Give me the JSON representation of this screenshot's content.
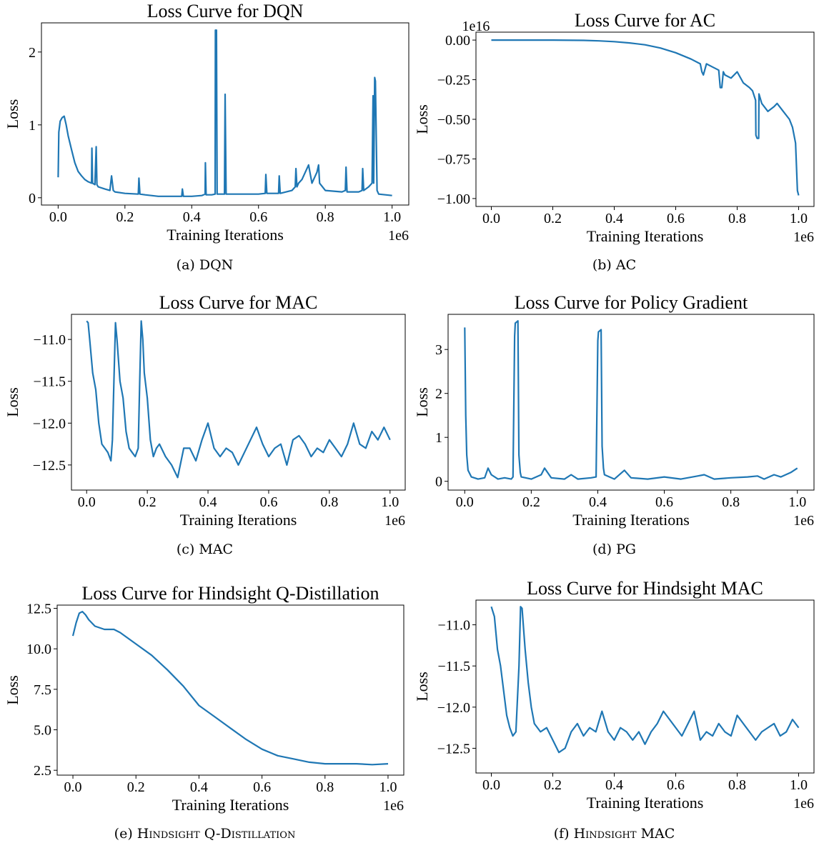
{
  "chart_data": [
    {
      "type": "line",
      "title": "Loss Curve for DQN",
      "xlabel": "Training Iterations",
      "ylabel": "Loss",
      "x_offset_label": "1e6",
      "y_offset_label": "",
      "caption": "(a) DQN",
      "xlim": [
        -0.05,
        1.05
      ],
      "ylim": [
        -0.1,
        2.4
      ],
      "xticks": [
        0.0,
        0.2,
        0.4,
        0.6,
        0.8,
        1.0
      ],
      "xtick_labels": [
        "0.0",
        "0.2",
        "0.4",
        "0.6",
        "0.8",
        "1.0"
      ],
      "yticks": [
        0,
        1,
        2
      ],
      "ytick_labels": [
        "0",
        "1",
        "2"
      ],
      "color": "#1f77b4",
      "series": [
        {
          "x": [
            0.0,
            0.002,
            0.006,
            0.012,
            0.018,
            0.024,
            0.03,
            0.04,
            0.05,
            0.06,
            0.07,
            0.08,
            0.09,
            0.1,
            0.101,
            0.103,
            0.11,
            0.114,
            0.116,
            0.12,
            0.14,
            0.155,
            0.16,
            0.165,
            0.17,
            0.2,
            0.24,
            0.242,
            0.245,
            0.26,
            0.3,
            0.35,
            0.37,
            0.372,
            0.375,
            0.4,
            0.43,
            0.44,
            0.441,
            0.443,
            0.46,
            0.47,
            0.471,
            0.474,
            0.476,
            0.49,
            0.498,
            0.5,
            0.503,
            0.55,
            0.6,
            0.62,
            0.622,
            0.625,
            0.66,
            0.662,
            0.665,
            0.7,
            0.71,
            0.712,
            0.715,
            0.72,
            0.73,
            0.75,
            0.76,
            0.775,
            0.78,
            0.783,
            0.8,
            0.85,
            0.86,
            0.862,
            0.865,
            0.9,
            0.91,
            0.912,
            0.915,
            0.93,
            0.94,
            0.943,
            0.945,
            0.948,
            0.95,
            0.955,
            0.96,
            0.98,
            1.0
          ],
          "y": [
            0.28,
            0.9,
            1.05,
            1.1,
            1.12,
            1.0,
            0.85,
            0.66,
            0.48,
            0.36,
            0.3,
            0.25,
            0.22,
            0.2,
            0.68,
            0.2,
            0.18,
            0.7,
            0.18,
            0.15,
            0.12,
            0.1,
            0.3,
            0.1,
            0.08,
            0.06,
            0.05,
            0.27,
            0.05,
            0.04,
            0.02,
            0.02,
            0.02,
            0.12,
            0.02,
            0.02,
            0.03,
            0.05,
            0.48,
            0.04,
            0.04,
            0.05,
            2.3,
            2.3,
            0.05,
            0.05,
            0.05,
            1.42,
            0.05,
            0.05,
            0.05,
            0.06,
            0.32,
            0.06,
            0.06,
            0.3,
            0.06,
            0.1,
            0.15,
            0.4,
            0.15,
            0.2,
            0.25,
            0.45,
            0.2,
            0.35,
            0.45,
            0.2,
            0.1,
            0.08,
            0.1,
            0.42,
            0.08,
            0.08,
            0.1,
            0.4,
            0.1,
            0.15,
            0.2,
            1.4,
            0.2,
            1.65,
            1.6,
            0.1,
            0.05,
            0.04,
            0.03
          ]
        }
      ]
    },
    {
      "type": "line",
      "title": "Loss Curve for AC",
      "xlabel": "Training Iterations",
      "ylabel": "Loss",
      "x_offset_label": "1e6",
      "y_offset_label": "1e16",
      "caption": "(b) AC",
      "xlim": [
        -0.05,
        1.05
      ],
      "ylim": [
        -1.05,
        0.05
      ],
      "xticks": [
        0.0,
        0.2,
        0.4,
        0.6,
        0.8,
        1.0
      ],
      "xtick_labels": [
        "0.0",
        "0.2",
        "0.4",
        "0.6",
        "0.8",
        "1.0"
      ],
      "yticks": [
        0.0,
        -0.25,
        -0.5,
        -0.75,
        -1.0
      ],
      "ytick_labels": [
        "0.00",
        "−0.25",
        "−0.50",
        "−0.75",
        "−1.00"
      ],
      "color": "#1f77b4",
      "series": [
        {
          "x": [
            0.0,
            0.1,
            0.2,
            0.3,
            0.35,
            0.4,
            0.45,
            0.5,
            0.55,
            0.6,
            0.65,
            0.68,
            0.685,
            0.69,
            0.7,
            0.72,
            0.74,
            0.745,
            0.75,
            0.755,
            0.76,
            0.78,
            0.8,
            0.82,
            0.84,
            0.85,
            0.86,
            0.861,
            0.865,
            0.87,
            0.871,
            0.88,
            0.9,
            0.92,
            0.93,
            0.95,
            0.97,
            0.98,
            0.99,
            0.993,
            0.996,
            1.0
          ],
          "y": [
            0.0,
            0.0,
            0.0,
            -0.002,
            -0.005,
            -0.01,
            -0.018,
            -0.03,
            -0.05,
            -0.08,
            -0.12,
            -0.15,
            -0.2,
            -0.22,
            -0.15,
            -0.17,
            -0.19,
            -0.3,
            -0.3,
            -0.2,
            -0.22,
            -0.24,
            -0.2,
            -0.27,
            -0.3,
            -0.32,
            -0.38,
            -0.6,
            -0.62,
            -0.62,
            -0.34,
            -0.4,
            -0.45,
            -0.42,
            -0.4,
            -0.45,
            -0.5,
            -0.55,
            -0.65,
            -0.8,
            -0.95,
            -0.98
          ]
        }
      ]
    },
    {
      "type": "line",
      "title": "Loss Curve for MAC",
      "xlabel": "Training Iterations",
      "ylabel": "Loss",
      "x_offset_label": "1e6",
      "y_offset_label": "",
      "caption": "(c) MAC",
      "xlim": [
        -0.05,
        1.05
      ],
      "ylim": [
        -12.8,
        -10.7
      ],
      "xticks": [
        0.0,
        0.2,
        0.4,
        0.6,
        0.8,
        1.0
      ],
      "xtick_labels": [
        "0.0",
        "0.2",
        "0.4",
        "0.6",
        "0.8",
        "1.0"
      ],
      "yticks": [
        -11.0,
        -11.5,
        -12.0,
        -12.5
      ],
      "ytick_labels": [
        "−11.0",
        "−11.5",
        "−12.0",
        "−12.5"
      ],
      "color": "#1f77b4",
      "series": [
        {
          "x": [
            0.0,
            0.005,
            0.01,
            0.02,
            0.03,
            0.04,
            0.05,
            0.06,
            0.07,
            0.08,
            0.085,
            0.09,
            0.095,
            0.1,
            0.11,
            0.12,
            0.13,
            0.14,
            0.15,
            0.16,
            0.17,
            0.175,
            0.18,
            0.185,
            0.19,
            0.2,
            0.21,
            0.22,
            0.23,
            0.24,
            0.26,
            0.28,
            0.3,
            0.32,
            0.34,
            0.36,
            0.38,
            0.4,
            0.42,
            0.44,
            0.46,
            0.48,
            0.5,
            0.52,
            0.54,
            0.56,
            0.58,
            0.6,
            0.62,
            0.64,
            0.66,
            0.68,
            0.7,
            0.72,
            0.74,
            0.76,
            0.78,
            0.8,
            0.82,
            0.84,
            0.86,
            0.88,
            0.9,
            0.92,
            0.94,
            0.96,
            0.98,
            1.0
          ],
          "y": [
            -10.78,
            -10.8,
            -11.0,
            -11.4,
            -11.6,
            -12.0,
            -12.25,
            -12.3,
            -12.35,
            -12.45,
            -12.2,
            -11.5,
            -10.8,
            -11.0,
            -11.5,
            -11.7,
            -12.1,
            -12.3,
            -12.35,
            -12.4,
            -12.3,
            -11.5,
            -10.78,
            -11.0,
            -11.4,
            -11.7,
            -12.2,
            -12.4,
            -12.3,
            -12.25,
            -12.4,
            -12.5,
            -12.65,
            -12.3,
            -12.3,
            -12.45,
            -12.2,
            -12.0,
            -12.3,
            -12.4,
            -12.3,
            -12.35,
            -12.5,
            -12.35,
            -12.2,
            -12.05,
            -12.25,
            -12.4,
            -12.3,
            -12.25,
            -12.5,
            -12.2,
            -12.15,
            -12.25,
            -12.4,
            -12.3,
            -12.35,
            -12.2,
            -12.3,
            -12.4,
            -12.25,
            -12.0,
            -12.25,
            -12.3,
            -12.1,
            -12.2,
            -12.05,
            -12.2
          ]
        }
      ]
    },
    {
      "type": "line",
      "title": "Loss Curve for Policy Gradient",
      "xlabel": "Training Iterations",
      "ylabel": "Loss",
      "x_offset_label": "1e6",
      "y_offset_label": "",
      "caption": "(d) PG",
      "xlim": [
        -0.05,
        1.05
      ],
      "ylim": [
        -0.2,
        3.8
      ],
      "xticks": [
        0.0,
        0.2,
        0.4,
        0.6,
        0.8,
        1.0
      ],
      "xtick_labels": [
        "0.0",
        "0.2",
        "0.4",
        "0.6",
        "0.8",
        "1.0"
      ],
      "yticks": [
        0,
        1,
        2,
        3
      ],
      "ytick_labels": [
        "0",
        "1",
        "2",
        "3"
      ],
      "color": "#1f77b4",
      "series": [
        {
          "x": [
            0.0,
            0.003,
            0.006,
            0.01,
            0.02,
            0.04,
            0.06,
            0.07,
            0.08,
            0.1,
            0.12,
            0.14,
            0.145,
            0.15,
            0.152,
            0.16,
            0.163,
            0.167,
            0.17,
            0.2,
            0.23,
            0.24,
            0.26,
            0.3,
            0.32,
            0.34,
            0.38,
            0.395,
            0.4,
            0.402,
            0.41,
            0.413,
            0.417,
            0.42,
            0.45,
            0.48,
            0.5,
            0.55,
            0.6,
            0.65,
            0.7,
            0.72,
            0.75,
            0.8,
            0.85,
            0.88,
            0.9,
            0.93,
            0.95,
            0.98,
            1.0
          ],
          "y": [
            3.5,
            1.5,
            0.6,
            0.25,
            0.1,
            0.05,
            0.08,
            0.3,
            0.15,
            0.05,
            0.08,
            0.05,
            0.1,
            3.3,
            3.6,
            3.65,
            0.6,
            0.2,
            0.1,
            0.05,
            0.15,
            0.3,
            0.08,
            0.05,
            0.15,
            0.05,
            0.08,
            0.1,
            3.2,
            3.4,
            3.45,
            0.8,
            0.3,
            0.15,
            0.05,
            0.25,
            0.08,
            0.05,
            0.1,
            0.05,
            0.12,
            0.15,
            0.05,
            0.08,
            0.1,
            0.12,
            0.05,
            0.15,
            0.1,
            0.2,
            0.3
          ]
        }
      ]
    },
    {
      "type": "line",
      "title": "Loss Curve for Hindsight Q-Distillation",
      "xlabel": "Training Iterations",
      "ylabel": "Loss",
      "x_offset_label": "1e6",
      "y_offset_label": "",
      "caption_prefix": "(e)",
      "caption_small_caps": "Hindsight Q-Distillation",
      "xlim": [
        -0.05,
        1.05
      ],
      "ylim": [
        2.2,
        12.7
      ],
      "xticks": [
        0.0,
        0.2,
        0.4,
        0.6,
        0.8,
        1.0
      ],
      "xtick_labels": [
        "0.0",
        "0.2",
        "0.4",
        "0.6",
        "0.8",
        "1.0"
      ],
      "yticks": [
        2.5,
        5.0,
        7.5,
        10.0,
        12.5
      ],
      "ytick_labels": [
        "2.5",
        "5.0",
        "7.5",
        "10.0",
        "12.5"
      ],
      "color": "#1f77b4",
      "series": [
        {
          "x": [
            0.0,
            0.01,
            0.02,
            0.03,
            0.04,
            0.05,
            0.07,
            0.1,
            0.13,
            0.15,
            0.2,
            0.25,
            0.3,
            0.35,
            0.4,
            0.45,
            0.5,
            0.55,
            0.6,
            0.65,
            0.7,
            0.75,
            0.8,
            0.85,
            0.9,
            0.95,
            1.0
          ],
          "y": [
            10.8,
            11.6,
            12.2,
            12.3,
            12.1,
            11.8,
            11.4,
            11.2,
            11.2,
            11.0,
            10.3,
            9.6,
            8.7,
            7.7,
            6.5,
            5.8,
            5.1,
            4.4,
            3.8,
            3.4,
            3.2,
            3.0,
            2.9,
            2.9,
            2.9,
            2.85,
            2.9
          ]
        }
      ]
    },
    {
      "type": "line",
      "title": "Loss Curve for Hindsight MAC",
      "xlabel": "Training Iterations",
      "ylabel": "Loss",
      "x_offset_label": "1e6",
      "y_offset_label": "",
      "caption_prefix": "(f)",
      "caption_small_caps": "Hindsight MAC",
      "xlim": [
        -0.05,
        1.05
      ],
      "ylim": [
        -12.8,
        -10.7
      ],
      "xticks": [
        0.0,
        0.2,
        0.4,
        0.6,
        0.8,
        1.0
      ],
      "xtick_labels": [
        "0.0",
        "0.2",
        "0.4",
        "0.6",
        "0.8",
        "1.0"
      ],
      "yticks": [
        -11.0,
        -11.5,
        -12.0,
        -12.5
      ],
      "ytick_labels": [
        "−11.0",
        "−11.5",
        "−12.0",
        "−12.5"
      ],
      "color": "#1f77b4",
      "series": [
        {
          "x": [
            0.0,
            0.01,
            0.02,
            0.03,
            0.04,
            0.05,
            0.06,
            0.07,
            0.08,
            0.09,
            0.095,
            0.1,
            0.11,
            0.12,
            0.13,
            0.14,
            0.16,
            0.18,
            0.2,
            0.22,
            0.24,
            0.26,
            0.28,
            0.3,
            0.32,
            0.34,
            0.36,
            0.38,
            0.4,
            0.42,
            0.44,
            0.46,
            0.48,
            0.5,
            0.52,
            0.54,
            0.56,
            0.58,
            0.6,
            0.62,
            0.64,
            0.66,
            0.68,
            0.7,
            0.72,
            0.74,
            0.76,
            0.78,
            0.8,
            0.82,
            0.84,
            0.86,
            0.88,
            0.9,
            0.92,
            0.94,
            0.96,
            0.98,
            1.0
          ],
          "y": [
            -10.78,
            -10.9,
            -11.3,
            -11.5,
            -11.8,
            -12.1,
            -12.25,
            -12.35,
            -12.3,
            -11.5,
            -10.78,
            -10.8,
            -11.3,
            -11.7,
            -12.0,
            -12.2,
            -12.3,
            -12.25,
            -12.4,
            -12.55,
            -12.5,
            -12.3,
            -12.2,
            -12.35,
            -12.25,
            -12.3,
            -12.05,
            -12.3,
            -12.4,
            -12.25,
            -12.3,
            -12.4,
            -12.3,
            -12.45,
            -12.3,
            -12.2,
            -12.05,
            -12.15,
            -12.25,
            -12.35,
            -12.2,
            -12.05,
            -12.4,
            -12.3,
            -12.35,
            -12.2,
            -12.3,
            -12.35,
            -12.1,
            -12.2,
            -12.3,
            -12.4,
            -12.3,
            -12.25,
            -12.2,
            -12.35,
            -12.3,
            -12.15,
            -12.25
          ]
        }
      ]
    }
  ]
}
